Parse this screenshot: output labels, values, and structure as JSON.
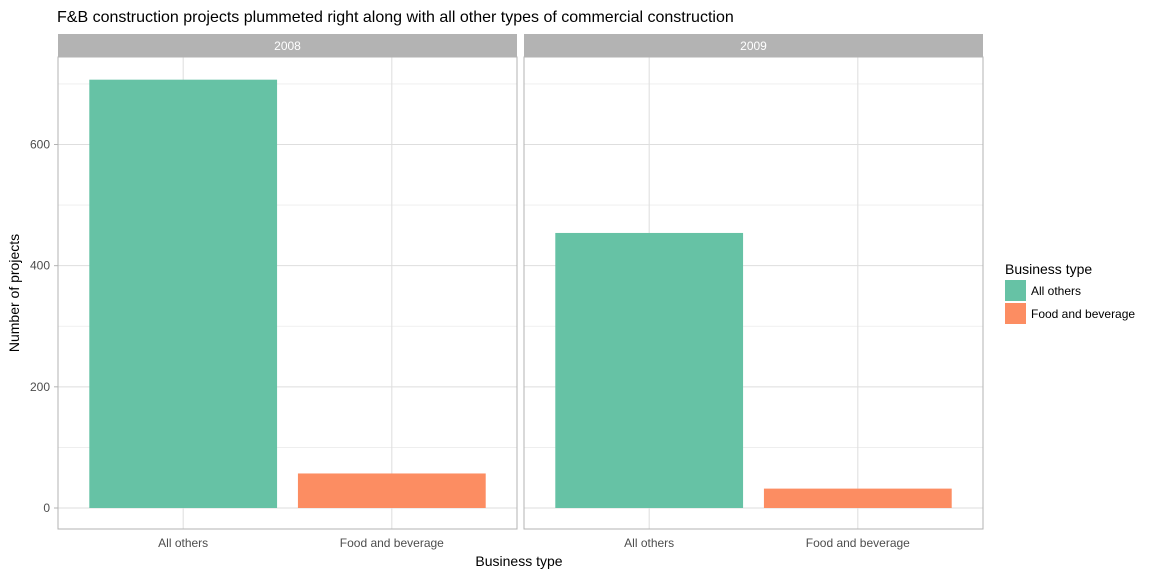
{
  "chart_data": {
    "type": "bar",
    "title": "F&B construction projects plummeted right along with all other types of commercial construction",
    "xlabel": "Business type",
    "ylabel": "Number of projects",
    "ylim": [
      0,
      740
    ],
    "yticks": [
      0,
      200,
      400,
      600
    ],
    "grid": true,
    "legend": {
      "title": "Business type",
      "position": "right",
      "entries": [
        {
          "label": "All others",
          "color": "#66c2a5"
        },
        {
          "label": "Food and beverage",
          "color": "#fc8d62"
        }
      ]
    },
    "categories": [
      "All others",
      "Food and beverage"
    ],
    "facets": [
      {
        "label": "2008",
        "values": [
          707,
          57
        ]
      },
      {
        "label": "2009",
        "values": [
          454,
          32
        ]
      }
    ],
    "colors": {
      "strip_bg": "#b3b3b3",
      "strip_text": "#ffffff",
      "panel_border": "#b3b3b3",
      "grid_major": "#dedede",
      "grid_minor": "#ececec",
      "axis_text": "#4d4d4d",
      "title_text": "#000000"
    }
  }
}
